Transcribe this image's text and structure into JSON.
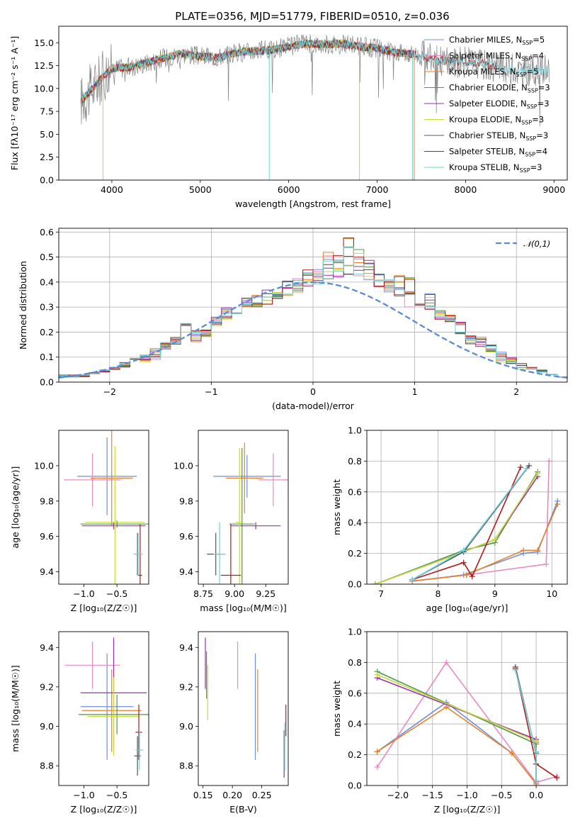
{
  "figure": {
    "title": "PLATE=0356, MJD=51779, FIBERID=0510, z=0.036"
  },
  "series": [
    {
      "key": "chabrier_miles",
      "name": "Chabrier MILES, N",
      "sub": "SSP",
      "suffix": "=5",
      "color": "#6f8fdc"
    },
    {
      "key": "salpeter_miles",
      "name": "Salpeter MILES, N",
      "sub": "SSP",
      "suffix": "=4",
      "color": "#e78ac3"
    },
    {
      "key": "kroupa_miles",
      "name": "Kroupa MILES, N",
      "sub": "SSP",
      "suffix": "=5",
      "color": "#e6822a"
    },
    {
      "key": "chabrier_elodie",
      "name": "Chabrier ELODIE, N",
      "sub": "SSP",
      "suffix": "=3",
      "color": "#4a9a4a"
    },
    {
      "key": "salpeter_elodie",
      "name": "Salpeter ELODIE, N",
      "sub": "SSP",
      "suffix": "=3",
      "color": "#9b30b0"
    },
    {
      "key": "kroupa_elodie",
      "name": "Kroupa ELODIE, N",
      "sub": "SSP",
      "suffix": "=3",
      "color": "#c8d93a"
    },
    {
      "key": "chabrier_stelib",
      "name": "Chabrier STELIB, N",
      "sub": "SSP",
      "suffix": "=3",
      "color": "#555555"
    },
    {
      "key": "salpeter_stelib",
      "name": "Salpeter STELIB, N",
      "sub": "SSP",
      "suffix": "=4",
      "color": "#b01c1c"
    },
    {
      "key": "kroupa_stelib",
      "name": "Kroupa STELIB, N",
      "sub": "SSP",
      "suffix": "=3",
      "color": "#6ed3dc"
    }
  ],
  "chart_data": [
    {
      "id": "spectrum",
      "type": "line",
      "xlabel": "wavelength [Angstrom, rest frame]",
      "ylabel": "Flux [fλ10⁻¹⁷ erg cm⁻² s⁻¹ A⁻¹]",
      "xlim": [
        3400,
        9150
      ],
      "ylim": [
        0,
        16.8
      ],
      "xticks": [
        4000,
        5000,
        6000,
        7000,
        8000,
        9000
      ],
      "yticks": [
        0.0,
        2.5,
        5.0,
        7.5,
        10.0,
        12.5,
        15.0
      ],
      "observed_color": "#808080",
      "legend_position": "upper right",
      "continuum": [
        [
          3650,
          8.6
        ],
        [
          3800,
          10.2
        ],
        [
          3900,
          11.3
        ],
        [
          4000,
          12.2
        ],
        [
          4200,
          12.3
        ],
        [
          4400,
          12.8
        ],
        [
          4600,
          13.4
        ],
        [
          4800,
          13.8
        ],
        [
          5000,
          13.5
        ],
        [
          5200,
          13.4
        ],
        [
          5400,
          13.9
        ],
        [
          5600,
          14.1
        ],
        [
          5800,
          14.2
        ],
        [
          6000,
          14.6
        ],
        [
          6200,
          14.9
        ],
        [
          6400,
          14.8
        ],
        [
          6600,
          14.9
        ],
        [
          6800,
          14.6
        ],
        [
          7000,
          14.4
        ],
        [
          7200,
          13.9
        ],
        [
          7400,
          13.8
        ],
        [
          7600,
          13.4
        ],
        [
          7800,
          12.9
        ],
        [
          8000,
          12.9
        ],
        [
          8200,
          12.7
        ],
        [
          8400,
          12.3
        ],
        [
          8600,
          12.0
        ],
        [
          8800,
          12.0
        ],
        [
          9000,
          11.9
        ]
      ],
      "model_end_wavelength": 7420,
      "absorption_dips": [
        {
          "series": "kroupa_stelib",
          "x": 5780,
          "y": 0
        },
        {
          "series": "kroupa_elodie",
          "x": 6800,
          "y": 0
        },
        {
          "series": "kroupa_elodie",
          "x": 3900,
          "y": 0
        },
        {
          "series": "kroupa_stelib",
          "x": 7400,
          "y": 0
        }
      ]
    },
    {
      "id": "residuals",
      "type": "histogram",
      "xlabel": "(data-model)/error",
      "ylabel": "Normed distribution",
      "xlim": [
        -2.5,
        2.5
      ],
      "ylim": [
        0,
        0.615
      ],
      "xticks": [
        -2,
        -1,
        0,
        1,
        2
      ],
      "yticks": [
        0.0,
        0.1,
        0.2,
        0.3,
        0.4,
        0.5,
        0.6
      ],
      "grid": true,
      "legend": "𝒩(0,1)",
      "bin_width": 0.1,
      "envelope_low": [
        0.02,
        0.02,
        0.02,
        0.03,
        0.04,
        0.05,
        0.06,
        0.08,
        0.08,
        0.09,
        0.12,
        0.15,
        0.17,
        0.16,
        0.18,
        0.22,
        0.25,
        0.27,
        0.3,
        0.3,
        0.3,
        0.33,
        0.34,
        0.36,
        0.38,
        0.38,
        0.4,
        0.42,
        0.41,
        0.41,
        0.4,
        0.38,
        0.36,
        0.34,
        0.3,
        0.3,
        0.29,
        0.25,
        0.24,
        0.19,
        0.15,
        0.14,
        0.12,
        0.08,
        0.07,
        0.05,
        0.05,
        0.04,
        0.03,
        0.02
      ],
      "envelope_high": [
        0.03,
        0.03,
        0.03,
        0.04,
        0.05,
        0.06,
        0.08,
        0.1,
        0.11,
        0.14,
        0.16,
        0.18,
        0.24,
        0.21,
        0.21,
        0.26,
        0.3,
        0.33,
        0.34,
        0.35,
        0.37,
        0.36,
        0.42,
        0.42,
        0.45,
        0.47,
        0.52,
        0.51,
        0.59,
        0.53,
        0.49,
        0.45,
        0.46,
        0.44,
        0.42,
        0.4,
        0.36,
        0.29,
        0.27,
        0.24,
        0.19,
        0.18,
        0.15,
        0.12,
        0.1,
        0.08,
        0.06,
        0.05,
        0.03,
        0.02
      ]
    },
    {
      "id": "age_vs_Z",
      "type": "errorbar",
      "xlabel": "Z [log₁₀(Z/Z☉)]",
      "ylabel": "age  [log₁₀(age/yr)]",
      "xlim": [
        -1.38,
        -0.02
      ],
      "ylim": [
        9.33,
        10.2
      ],
      "xticks": [
        -1.0,
        -0.5
      ],
      "yticks": [
        9.4,
        9.6,
        9.8,
        10.0
      ],
      "points": [
        {
          "series": "chabrier_miles",
          "x": -0.65,
          "y": 9.94,
          "xerr": 0.45,
          "yerr": 0.22
        },
        {
          "series": "salpeter_miles",
          "x": -0.87,
          "y": 9.92,
          "xerr": 0.43,
          "yerr": 0.15
        },
        {
          "series": "kroupa_miles",
          "x": -0.58,
          "y": 9.93,
          "xerr": 0.32,
          "yerr": 0.27
        },
        {
          "series": "chabrier_elodie",
          "x": -0.5,
          "y": 9.67,
          "xerr": 0.55,
          "yerr": 0.02
        },
        {
          "series": "salpeter_elodie",
          "x": -0.55,
          "y": 9.66,
          "xerr": 0.48,
          "yerr": 0.02
        },
        {
          "series": "kroupa_elodie",
          "x": -0.53,
          "y": 9.68,
          "xerr": 0.45,
          "yerr": 0.43
        },
        {
          "series": "chabrier_stelib",
          "x": -0.19,
          "y": 9.5,
          "xerr": 0.04,
          "yerr": 0.12
        },
        {
          "series": "salpeter_stelib",
          "x": -0.15,
          "y": 9.38,
          "xerr": 0.03,
          "yerr": 0.29
        },
        {
          "series": "kroupa_stelib",
          "x": -0.18,
          "y": 9.5,
          "xerr": 0.07,
          "yerr": 0.12
        }
      ]
    },
    {
      "id": "age_vs_mass",
      "type": "errorbar",
      "xlabel": "mass [log₁₀(M/M☉)]",
      "ylabel": "",
      "xlim": [
        8.71,
        9.43
      ],
      "ylim": [
        9.33,
        10.2
      ],
      "xticks": [
        8.75,
        9.0,
        9.25
      ],
      "yticks": [
        9.4,
        9.6,
        9.8,
        10.0
      ],
      "points": [
        {
          "series": "chabrier_miles",
          "x": 9.1,
          "y": 9.94,
          "xerr": 0.27,
          "yerr": 0.12
        },
        {
          "series": "salpeter_miles",
          "x": 9.31,
          "y": 9.92,
          "xerr": 0.12,
          "yerr": 0.15
        },
        {
          "series": "kroupa_miles",
          "x": 9.08,
          "y": 9.93,
          "xerr": 0.15,
          "yerr": 0.2
        },
        {
          "series": "chabrier_elodie",
          "x": 9.06,
          "y": 9.67,
          "xerr": 0.1,
          "yerr": 0.43
        },
        {
          "series": "salpeter_elodie",
          "x": 9.17,
          "y": 9.66,
          "xerr": 0.2,
          "yerr": 0.02
        },
        {
          "series": "kroupa_elodie",
          "x": 9.04,
          "y": 9.68,
          "xerr": 0.03,
          "yerr": 0.42
        },
        {
          "series": "chabrier_stelib",
          "x": 8.85,
          "y": 9.5,
          "xerr": 0.07,
          "yerr": 0.12
        },
        {
          "series": "salpeter_stelib",
          "x": 8.97,
          "y": 9.38,
          "xerr": 0.08,
          "yerr": 0.29
        },
        {
          "series": "kroupa_stelib",
          "x": 8.88,
          "y": 9.5,
          "xerr": 0.05,
          "yerr": 0.18
        }
      ]
    },
    {
      "id": "weight_vs_age",
      "type": "line",
      "xlabel": "age  [log₁₀(age/yr)]",
      "ylabel": "mass weight",
      "xlim": [
        6.75,
        10.27
      ],
      "ylim": [
        0,
        1
      ],
      "xticks": [
        7,
        8,
        9,
        10
      ],
      "yticks": [
        0.0,
        0.2,
        0.4,
        0.6,
        0.8,
        1.0
      ],
      "grid": true,
      "lines": [
        {
          "series": "chabrier_miles",
          "x": [
            7.55,
            8.45,
            9.5,
            9.75,
            10.1
          ],
          "y": [
            0.02,
            0.06,
            0.2,
            0.21,
            0.54
          ]
        },
        {
          "series": "salpeter_miles",
          "x": [
            7.55,
            8.5,
            9.9,
            9.95
          ],
          "y": [
            0.02,
            0.06,
            0.13,
            0.8
          ]
        },
        {
          "series": "kroupa_miles",
          "x": [
            7.55,
            8.5,
            9.5,
            9.75,
            10.1
          ],
          "y": [
            0.02,
            0.06,
            0.22,
            0.22,
            0.52
          ]
        },
        {
          "series": "chabrier_elodie",
          "x": [
            6.9,
            8.45,
            9.0,
            9.75
          ],
          "y": [
            0.0,
            0.22,
            0.27,
            0.73
          ]
        },
        {
          "series": "salpeter_elodie",
          "x": [
            6.9,
            8.45,
            9.0,
            9.75
          ],
          "y": [
            0.0,
            0.21,
            0.29,
            0.7
          ]
        },
        {
          "series": "kroupa_elodie",
          "x": [
            6.9,
            8.45,
            9.0,
            9.75
          ],
          "y": [
            0.0,
            0.21,
            0.29,
            0.72
          ]
        },
        {
          "series": "chabrier_stelib",
          "x": [
            7.55,
            8.45,
            9.6
          ],
          "y": [
            0.03,
            0.21,
            0.77
          ]
        },
        {
          "series": "salpeter_stelib",
          "x": [
            7.55,
            8.45,
            8.6,
            9.45
          ],
          "y": [
            0.03,
            0.14,
            0.05,
            0.76
          ]
        },
        {
          "series": "kroupa_stelib",
          "x": [
            7.55,
            8.45,
            9.55
          ],
          "y": [
            0.03,
            0.22,
            0.75
          ]
        }
      ]
    },
    {
      "id": "mass_vs_Z",
      "type": "errorbar",
      "xlabel": "Z [log₁₀(Z/Z☉)]",
      "ylabel": "mass [log₁₀(M/M☉)]",
      "xlim": [
        -1.38,
        -0.02
      ],
      "ylim": [
        8.7,
        9.48
      ],
      "xticks": [
        -1.0,
        -0.5
      ],
      "yticks": [
        8.8,
        9.0,
        9.2,
        9.4
      ],
      "points": [
        {
          "series": "chabrier_miles",
          "x": -0.65,
          "y": 9.1,
          "xerr": 0.4,
          "yerr": 0.27
        },
        {
          "series": "salpeter_miles",
          "x": -0.87,
          "y": 9.31,
          "xerr": 0.42,
          "yerr": 0.12
        },
        {
          "series": "kroupa_miles",
          "x": -0.58,
          "y": 9.08,
          "xerr": 0.45,
          "yerr": 0.21
        },
        {
          "series": "chabrier_elodie",
          "x": -0.5,
          "y": 9.06,
          "xerr": 0.58,
          "yerr": 0.1
        },
        {
          "series": "salpeter_elodie",
          "x": -0.55,
          "y": 9.17,
          "xerr": 0.5,
          "yerr": 0.28
        },
        {
          "series": "kroupa_elodie",
          "x": -0.55,
          "y": 9.05,
          "xerr": 0.4,
          "yerr": 0.2
        },
        {
          "series": "chabrier_stelib",
          "x": -0.19,
          "y": 8.85,
          "xerr": 0.05,
          "yerr": 0.1
        },
        {
          "series": "salpeter_stelib",
          "x": -0.17,
          "y": 8.97,
          "xerr": 0.05,
          "yerr": 0.14
        },
        {
          "series": "kroupa_stelib",
          "x": -0.16,
          "y": 8.88,
          "xerr": 0.06,
          "yerr": 0.1
        }
      ]
    },
    {
      "id": "mass_vs_ebv",
      "type": "errorbar",
      "xlabel": "E(B-V)",
      "ylabel": "",
      "xlim": [
        0.142,
        0.295
      ],
      "ylim": [
        8.7,
        9.48
      ],
      "xticks": [
        0.15,
        0.2,
        0.25
      ],
      "yticks": [
        8.8,
        9.0,
        9.2,
        9.4
      ],
      "points": [
        {
          "series": "chabrier_miles",
          "x": 0.239,
          "y": 9.1,
          "xerr": 0.0,
          "yerr": 0.27
        },
        {
          "series": "salpeter_miles",
          "x": 0.209,
          "y": 9.31,
          "xerr": 0.0,
          "yerr": 0.12
        },
        {
          "series": "kroupa_miles",
          "x": 0.243,
          "y": 9.08,
          "xerr": 0.0,
          "yerr": 0.21
        },
        {
          "series": "chabrier_elodie",
          "x": 0.156,
          "y": 9.26,
          "xerr": 0.0,
          "yerr": 0.12
        },
        {
          "series": "salpeter_elodie",
          "x": 0.154,
          "y": 9.32,
          "xerr": 0.0,
          "yerr": 0.13
        },
        {
          "series": "kroupa_elodie",
          "x": 0.158,
          "y": 9.17,
          "xerr": 0.0,
          "yerr": 0.14
        },
        {
          "series": "chabrier_stelib",
          "x": 0.288,
          "y": 8.86,
          "xerr": 0.0,
          "yerr": 0.12
        },
        {
          "series": "salpeter_stelib",
          "x": 0.291,
          "y": 9.03,
          "xerr": 0.0,
          "yerr": 0.08
        },
        {
          "series": "kroupa_stelib",
          "x": 0.289,
          "y": 8.9,
          "xerr": 0.0,
          "yerr": 0.12
        }
      ]
    },
    {
      "id": "weight_vs_Z",
      "type": "line",
      "xlabel": "Z [log₁₀(Z/Z☉)]",
      "ylabel": "mass weight",
      "xlim": [
        -2.45,
        0.45
      ],
      "ylim": [
        0,
        1
      ],
      "xticks": [
        -2.0,
        -1.5,
        -1.0,
        -0.5,
        0.0
      ],
      "yticks": [
        0.0,
        0.2,
        0.4,
        0.6,
        0.8,
        1.0
      ],
      "grid": true,
      "lines": [
        {
          "series": "chabrier_miles",
          "x": [
            -2.3,
            -1.3,
            -0.35,
            0.0,
            0.0
          ],
          "y": [
            0.22,
            0.54,
            0.21,
            0.01,
            0.29
          ]
        },
        {
          "series": "salpeter_miles",
          "x": [
            -2.3,
            -1.3,
            0.0,
            0.3
          ],
          "y": [
            0.12,
            0.8,
            0.02,
            0.06
          ]
        },
        {
          "series": "kroupa_miles",
          "x": [
            -2.3,
            -1.3,
            -0.35,
            0.0,
            0.0
          ],
          "y": [
            0.22,
            0.51,
            0.21,
            0.01,
            0.28
          ]
        },
        {
          "series": "chabrier_elodie",
          "x": [
            -2.3,
            0.0
          ],
          "y": [
            0.74,
            0.27
          ]
        },
        {
          "series": "salpeter_elodie",
          "x": [
            -2.3,
            0.0
          ],
          "y": [
            0.7,
            0.3
          ]
        },
        {
          "series": "kroupa_elodie",
          "x": [
            -2.3,
            0.0
          ],
          "y": [
            0.72,
            0.29
          ]
        },
        {
          "series": "chabrier_stelib",
          "x": [
            -0.3,
            0.0,
            0.0
          ],
          "y": [
            0.77,
            0.21,
            0.03
          ]
        },
        {
          "series": "salpeter_stelib",
          "x": [
            -0.3,
            0.0,
            0.3
          ],
          "y": [
            0.76,
            0.14,
            0.05
          ]
        },
        {
          "series": "kroupa_stelib",
          "x": [
            -0.3,
            0.0,
            0.0
          ],
          "y": [
            0.75,
            0.22,
            0.03
          ]
        }
      ]
    }
  ]
}
